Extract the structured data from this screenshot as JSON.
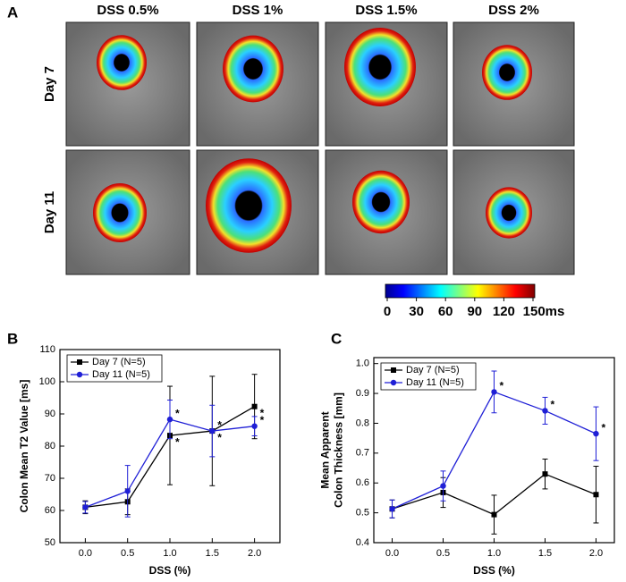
{
  "panel_a": {
    "label": "A",
    "columns": [
      "DSS 0.5%",
      "DSS 1%",
      "DSS 1.5%",
      "DSS 2%"
    ],
    "rows": [
      "Day 7",
      "Day 11"
    ],
    "colorbar": {
      "lim": [
        0,
        150
      ],
      "ticks": [
        0,
        30,
        60,
        90,
        120,
        {
          "value": 150,
          "label": "150ms"
        }
      ]
    }
  },
  "chart_data": [
    {
      "type": "line",
      "label": "B",
      "xlabel": "DSS (%)",
      "ylabel": [
        "Colon Mean T2 Value [ms]"
      ],
      "x": [
        0,
        0.5,
        1,
        1.5,
        2
      ],
      "xlim": [
        -0.3,
        2.3
      ],
      "xticks": [
        {
          "value": 0,
          "label": "0.0"
        },
        0.5,
        {
          "value": 1,
          "label": "1.0"
        },
        1.5,
        {
          "value": 2,
          "label": "2.0"
        }
      ],
      "ylim": [
        50,
        110
      ],
      "yticks": [
        50,
        60,
        70,
        80,
        90,
        100,
        110
      ],
      "legend": "upper left",
      "series": [
        {
          "name": "Day 7 (N=5)",
          "color": "#000000",
          "marker": "square",
          "values": [
            61,
            62.7,
            83.3,
            84.7,
            92.3
          ],
          "errors": [
            2,
            4,
            15.3,
            17,
            10
          ],
          "significance": [
            null,
            null,
            "*",
            "*",
            "*"
          ]
        },
        {
          "name": "Day 11 (N=5)",
          "color": "#1f1fd6",
          "marker": "circle",
          "values": [
            61,
            66,
            88.3,
            84.7,
            86.2
          ],
          "errors": [
            1.8,
            8,
            6,
            8,
            3
          ],
          "significance": [
            null,
            null,
            "*",
            "*",
            "*"
          ]
        }
      ]
    },
    {
      "type": "line",
      "label": "C",
      "xlabel": "DSS (%)",
      "ylabel": [
        "Mean Apparent",
        "Colon Thickness [mm]"
      ],
      "x": [
        0,
        0.5,
        1,
        1.5,
        2
      ],
      "xlim": [
        -0.18,
        2.18
      ],
      "xticks": [
        {
          "value": 0,
          "label": "0.0"
        },
        0.5,
        {
          "value": 1,
          "label": "1.0"
        },
        1.5,
        {
          "value": 2,
          "label": "2.0"
        }
      ],
      "ylim": [
        0.4,
        1.02
      ],
      "yticks": [
        0.4,
        0.5,
        0.6,
        0.7,
        0.8,
        0.9,
        {
          "value": 1,
          "label": "1.0"
        }
      ],
      "legend": "upper left",
      "series": [
        {
          "name": "Day 7 (N=5)",
          "color": "#000000",
          "marker": "square",
          "values": [
            0.513,
            0.568,
            0.494,
            0.63,
            0.561
          ],
          "errors": [
            0.03,
            0.05,
            0.065,
            0.05,
            0.095
          ],
          "significance": [
            null,
            null,
            null,
            null,
            null
          ]
        },
        {
          "name": "Day 11 (N=5)",
          "color": "#1f1fd6",
          "marker": "circle",
          "values": [
            0.513,
            0.59,
            0.905,
            0.842,
            0.765
          ],
          "errors": [
            0.03,
            0.05,
            0.07,
            0.045,
            0.09
          ],
          "significance": [
            null,
            null,
            "*",
            "*",
            "*"
          ]
        }
      ]
    }
  ]
}
